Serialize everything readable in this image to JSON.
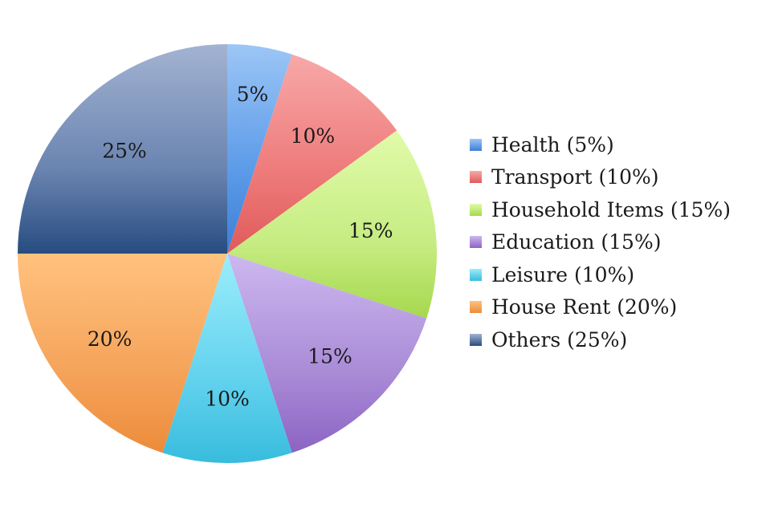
{
  "chart_data": {
    "type": "pie",
    "start_angle": "12 o'clock",
    "direction": "clockwise",
    "legend_position": "right",
    "slices": [
      {
        "label": "Health (5%)",
        "value": 5,
        "value_label": "5%",
        "color": "#5c9be8",
        "color_light": "#9cc6f6",
        "color_dark": "#3d7fd6"
      },
      {
        "label": "Transport (10%)",
        "value": 10,
        "value_label": "10%",
        "color": "#ee7a7a",
        "color_light": "#f8a8a8",
        "color_dark": "#e05a5a"
      },
      {
        "label": "Household Items (15%)",
        "value": 15,
        "value_label": "15%",
        "color": "#c6ec82",
        "color_light": "#e1fbaa",
        "color_dark": "#a6d84e"
      },
      {
        "label": "Education (15%)",
        "value": 15,
        "value_label": "15%",
        "color": "#a98bd6",
        "color_light": "#cdb8f0",
        "color_dark": "#8c64c4"
      },
      {
        "label": "Leisure (10%)",
        "value": 10,
        "value_label": "10%",
        "color": "#62d2ee",
        "color_light": "#9bedfb",
        "color_dark": "#38bcdd"
      },
      {
        "label": "House Rent (20%)",
        "value": 20,
        "value_label": "20%",
        "color": "#f5a35a",
        "color_light": "#ffc27e",
        "color_dark": "#ec8c3b"
      },
      {
        "label": "Others (25%)",
        "value": 25,
        "value_label": "25%",
        "color": "#6a84b0",
        "color_light": "#a3b3d2",
        "color_dark": "#274c80"
      }
    ]
  }
}
